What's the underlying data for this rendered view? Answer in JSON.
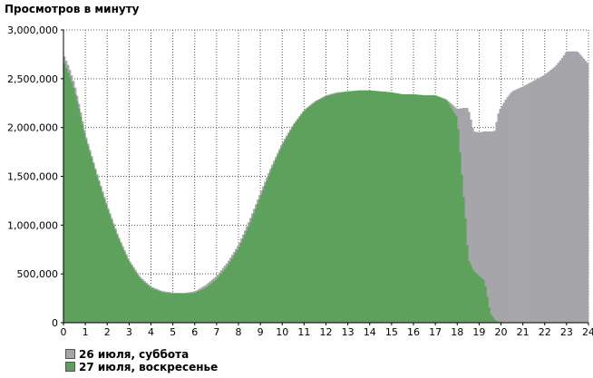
{
  "chart_data": {
    "type": "bar",
    "title": "Просмотров в минуту",
    "xlabel": "",
    "ylabel": "",
    "xlim": [
      0,
      24
    ],
    "ylim": [
      0,
      3000000
    ],
    "x_ticks": [
      "0",
      "1",
      "2",
      "3",
      "4",
      "5",
      "6",
      "7",
      "8",
      "9",
      "10",
      "11",
      "12",
      "13",
      "14",
      "15",
      "16",
      "17",
      "18",
      "19",
      "20",
      "21",
      "22",
      "23",
      "24"
    ],
    "y_ticks": [
      "0",
      "500,000",
      "1,000,000",
      "1,500,000",
      "2,000,000",
      "2,500,000",
      "3,000,000"
    ],
    "y_tick_values": [
      0,
      500000,
      1000000,
      1500000,
      2000000,
      2500000,
      3000000
    ],
    "grid": "dotted",
    "legend_position": "bottom-left",
    "series": [
      {
        "name": "26 июля, суббота",
        "color": "#a6a5aa",
        "x": [
          0,
          0.25,
          0.5,
          0.75,
          1,
          1.5,
          2,
          2.5,
          3,
          3.5,
          4,
          4.5,
          5,
          5.5,
          6,
          6.5,
          7,
          7.5,
          8,
          8.5,
          9,
          9.5,
          10,
          10.5,
          11,
          11.5,
          12,
          12.5,
          13,
          13.5,
          14,
          14.5,
          15,
          15.5,
          16,
          16.5,
          17,
          17.5,
          18,
          18.25,
          18.5,
          18.75,
          19,
          19.25,
          19.5,
          19.7,
          19.9,
          20.25,
          20.5,
          21,
          21.5,
          22,
          22.5,
          22.75,
          23,
          23.5,
          24
        ],
        "values": [
          2750000,
          2620000,
          2450000,
          2200000,
          1930000,
          1550000,
          1200000,
          890000,
          640000,
          470000,
          370000,
          325000,
          308000,
          305000,
          320000,
          385000,
          480000,
          620000,
          800000,
          1050000,
          1330000,
          1600000,
          1840000,
          2030000,
          2180000,
          2270000,
          2330000,
          2360000,
          2370000,
          2380000,
          2380000,
          2370000,
          2360000,
          2340000,
          2340000,
          2330000,
          2330000,
          2290000,
          2190000,
          2200000,
          2200000,
          1960000,
          1950000,
          1960000,
          1960000,
          1960000,
          2170000,
          2300000,
          2370000,
          2420000,
          2480000,
          2540000,
          2630000,
          2700000,
          2780000,
          2780000,
          2650000
        ]
      },
      {
        "name": "27 июля, воскресенье",
        "color": "#5ea15d",
        "x": [
          0,
          0.25,
          0.5,
          0.75,
          1,
          1.5,
          2,
          2.5,
          3,
          3.5,
          4,
          4.5,
          5,
          5.5,
          6,
          6.5,
          7,
          7.5,
          8,
          8.5,
          9,
          9.5,
          10,
          10.5,
          11,
          11.5,
          12,
          12.5,
          13,
          13.5,
          14,
          14.5,
          15,
          15.5,
          16,
          16.5,
          17,
          17.5,
          18,
          18.25,
          18.4,
          18.5,
          18.75,
          19,
          19.25,
          19.5,
          19.75,
          20,
          20.5,
          21
        ],
        "values": [
          2680000,
          2540000,
          2380000,
          2150000,
          1900000,
          1530000,
          1180000,
          870000,
          620000,
          450000,
          355000,
          312000,
          298000,
          298000,
          305000,
          355000,
          445000,
          580000,
          760000,
          1000000,
          1290000,
          1570000,
          1820000,
          2020000,
          2170000,
          2260000,
          2320000,
          2350000,
          2370000,
          2380000,
          2380000,
          2370000,
          2360000,
          2340000,
          2340000,
          2330000,
          2330000,
          2280000,
          2100000,
          1400000,
          1000000,
          650000,
          530000,
          480000,
          430000,
          100000,
          20000,
          5000,
          0,
          0
        ]
      }
    ]
  }
}
